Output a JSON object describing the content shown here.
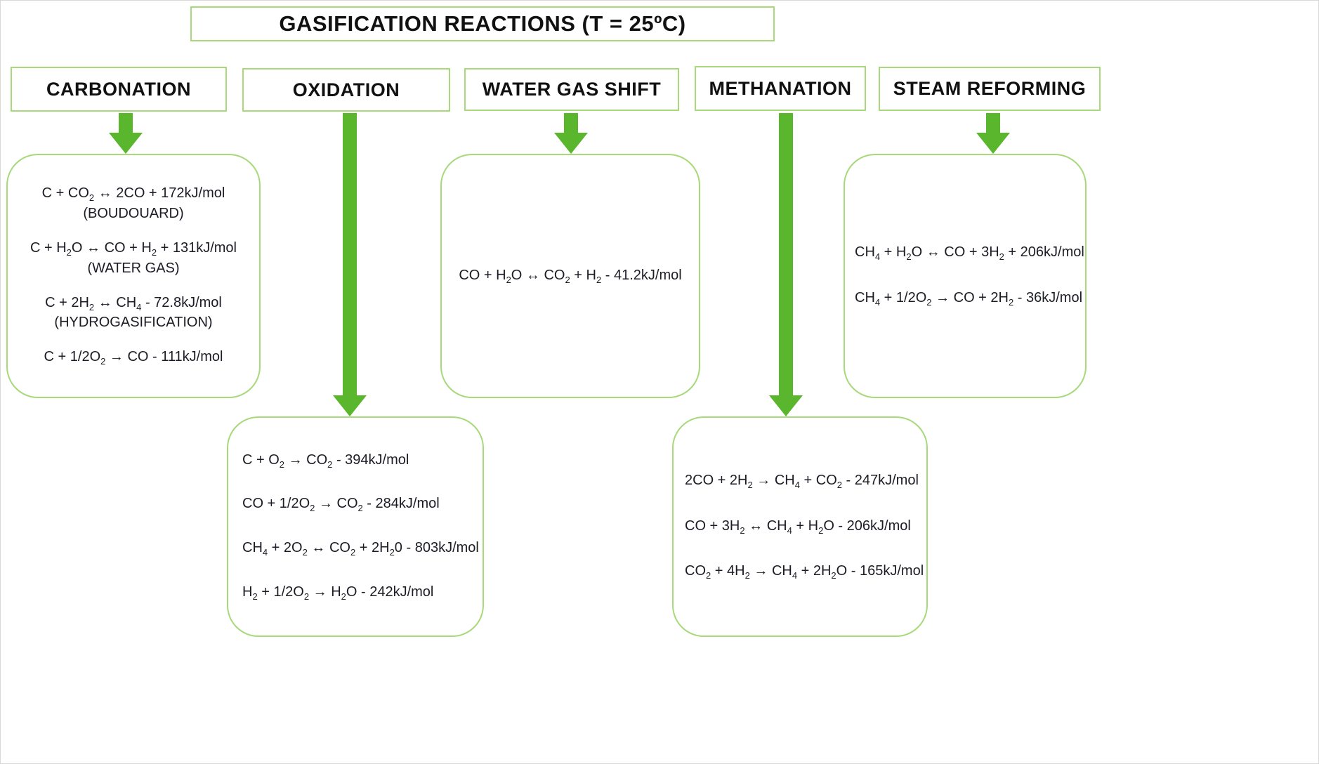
{
  "title": "GASIFICATION REACTIONS (T = 25ºC)",
  "colors": {
    "arrow_green": "#5ab62c",
    "border_green": "#a7d97b",
    "text": "#1c1c26"
  },
  "columns": [
    {
      "header": "CARBONATION",
      "reactions": [
        {
          "formula": "C + CO~2~ ↔ 2CO + 172kJ/mol",
          "note": "(BOUDOUARD)"
        },
        {
          "formula": "C + H~2~O ↔ CO + H~2~ + 131kJ/mol",
          "note": "(WATER GAS)"
        },
        {
          "formula": "C + 2H~2~ ↔ CH~4~ - 72.8kJ/mol",
          "note": "(HYDROGASIFICATION)"
        },
        {
          "formula": "C + 1/2O~2~ → CO - 111kJ/mol"
        }
      ]
    },
    {
      "header": "OXIDATION",
      "reactions": [
        {
          "formula": "C + O~2~ → CO~2~ - 394kJ/mol"
        },
        {
          "formula": "CO + 1/2O~2~ → CO~2~ - 284kJ/mol"
        },
        {
          "formula": "CH~4~ + 2O~2~ ↔ CO~2~ + 2H~2~0 - 803kJ/mol"
        },
        {
          "formula": "H~2~ + 1/2O~2~ → H~2~O - 242kJ/mol"
        }
      ]
    },
    {
      "header": "WATER GAS SHIFT",
      "reactions": [
        {
          "formula": "CO + H~2~O ↔ CO~2~ + H~2~ - 41.2kJ/mol"
        }
      ]
    },
    {
      "header": "METHANATION",
      "reactions": [
        {
          "formula": "2CO + 2H~2~ → CH~4~ + CO~2~ - 247kJ/mol"
        },
        {
          "formula": "CO + 3H~2~ ↔ CH~4~ + H~2~O - 206kJ/mol"
        },
        {
          "formula": "CO~2~ + 4H~2~ → CH~4~ + 2H~2~O - 165kJ/mol"
        }
      ]
    },
    {
      "header": "STEAM REFORMING",
      "reactions": [
        {
          "formula": "CH~4~ + H~2~O ↔ CO + 3H~2~ + 206kJ/mol"
        },
        {
          "formula": "CH~4~ + 1/2O~2~ → CO + 2H~2~ - 36kJ/mol"
        }
      ]
    }
  ]
}
